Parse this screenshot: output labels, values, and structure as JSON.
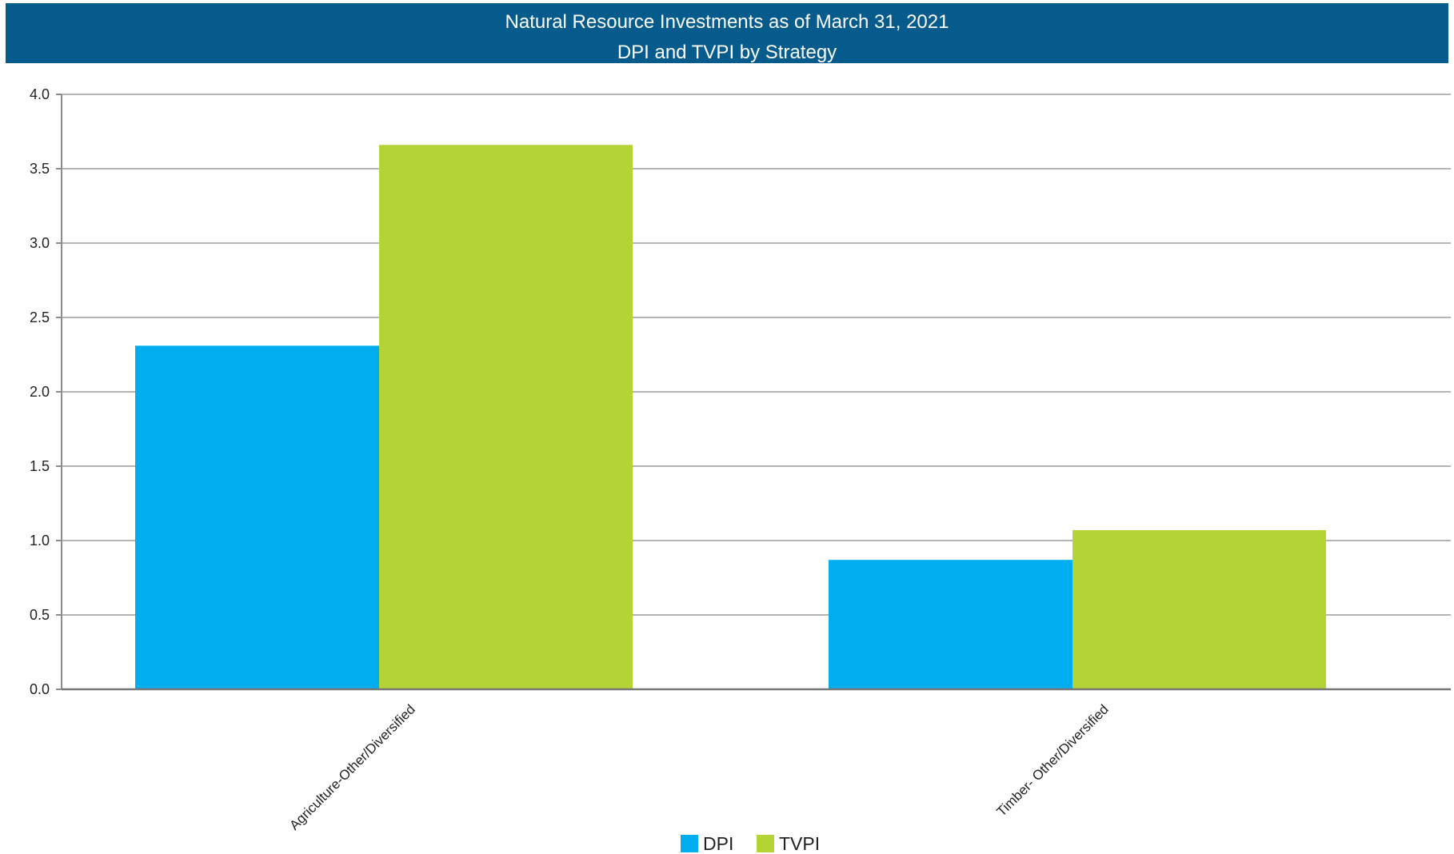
{
  "chart_data": {
    "type": "bar",
    "title": "Natural Resource Investments as of March 31, 2021",
    "subtitle": "DPI and TVPI by Strategy",
    "categories": [
      "Agriculture-Other/Diversified",
      "Timber- Other/Diversified"
    ],
    "series": [
      {
        "name": "DPI",
        "values": [
          2.31,
          0.87
        ],
        "color": "#00adef"
      },
      {
        "name": "TVPI",
        "values": [
          3.66,
          1.07
        ],
        "color": "#b4d335"
      }
    ],
    "ylim": [
      0,
      4.0
    ],
    "yticks": [
      "0.0",
      "0.5",
      "1.0",
      "1.5",
      "2.0",
      "2.5",
      "3.0",
      "3.5",
      "4.0"
    ],
    "xlabel": "",
    "ylabel": "",
    "grid": true,
    "legend": "bottom"
  }
}
